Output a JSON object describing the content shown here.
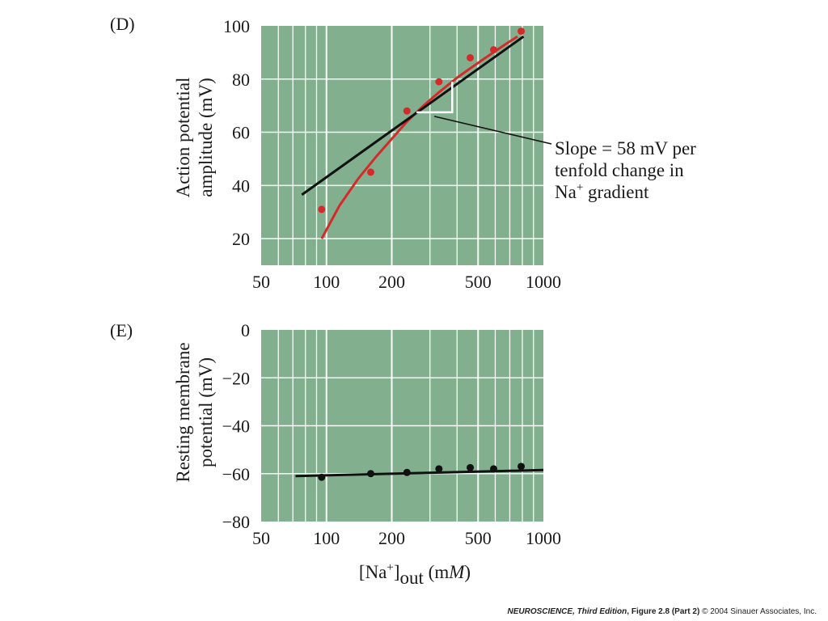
{
  "chart_data": [
    {
      "panel": "(D)",
      "type": "scatter",
      "x_scale": "log",
      "xlim": [
        50,
        1000
      ],
      "ylim": [
        10,
        100
      ],
      "x_ticks": [
        50,
        100,
        200,
        500,
        1000
      ],
      "x_tick_labels": [
        "50",
        "100",
        "200",
        "500",
        "1000"
      ],
      "y_ticks": [
        20,
        40,
        60,
        80,
        100
      ],
      "y_tick_labels": [
        "20",
        "40",
        "60",
        "80",
        "100"
      ],
      "ylabel_lines": [
        "Action potential",
        "amplitude (mV)"
      ],
      "xlabel": "",
      "grid": true,
      "points": [
        {
          "x": 95,
          "y": 31
        },
        {
          "x": 160,
          "y": 45
        },
        {
          "x": 235,
          "y": 68
        },
        {
          "x": 330,
          "y": 79
        },
        {
          "x": 460,
          "y": 88
        },
        {
          "x": 590,
          "y": 91
        },
        {
          "x": 790,
          "y": 98
        }
      ],
      "fit_line": {
        "x": [
          77,
          810
        ],
        "y": [
          36.5,
          96
        ]
      },
      "fit_curve": {
        "x": [
          95,
          115,
          140,
          170,
          200,
          235,
          280,
          330,
          400,
          460,
          530,
          600,
          680,
          760
        ],
        "y": [
          20,
          32.5,
          42.5,
          51,
          57.5,
          64,
          70,
          75,
          80.5,
          84,
          87.5,
          90.5,
          93.5,
          96
        ]
      },
      "slope_triangle": {
        "x_start": 260,
        "x_end": 380,
        "y_low": 67.5,
        "y_high": 79
      },
      "annotation_lines": [
        "Slope = 58 mV per",
        "tenfold change in",
        "Na"
      ],
      "annotation_superscript": "+",
      "annotation_tail": " gradient",
      "colors": {
        "background": "#82b08f",
        "grid": "#ffffff",
        "points": "#d42a2a",
        "curve": "#d42a2a",
        "line": "#111111"
      }
    },
    {
      "panel": "(E)",
      "type": "scatter",
      "x_scale": "log",
      "xlim": [
        50,
        1000
      ],
      "ylim": [
        -80,
        0
      ],
      "x_ticks": [
        50,
        100,
        200,
        500,
        1000
      ],
      "x_tick_labels": [
        "50",
        "100",
        "200",
        "500",
        "1000"
      ],
      "y_ticks": [
        0,
        -20,
        -40,
        -60,
        -80
      ],
      "y_tick_labels": [
        "0",
        "−20",
        "−40",
        "−60",
        "−80"
      ],
      "ylabel_lines": [
        "Resting membrane",
        "potential (mV)"
      ],
      "xlabel_parts": {
        "open": "[Na",
        "sup": "+",
        "close": "]",
        "sub": "out",
        "unit_pre": " (m",
        "unit_italic": "M",
        "unit_post": ")"
      },
      "grid": true,
      "points": [
        {
          "x": 95,
          "y": -61.5
        },
        {
          "x": 160,
          "y": -60
        },
        {
          "x": 235,
          "y": -59.5
        },
        {
          "x": 330,
          "y": -58
        },
        {
          "x": 460,
          "y": -57.5
        },
        {
          "x": 590,
          "y": -58
        },
        {
          "x": 790,
          "y": -57
        }
      ],
      "fit_line": {
        "x": [
          72,
          1000
        ],
        "y": [
          -61,
          -58.5
        ]
      },
      "colors": {
        "background": "#82b08f",
        "grid": "#ffffff",
        "points": "#111111",
        "line": "#111111"
      }
    }
  ],
  "footer": {
    "book": "NEUROSCIENCE",
    "edition": ", Third Edition",
    "figure": ", Figure 2.8 (Part 2)",
    "copyright": "  © 2004 Sinauer Associates, Inc."
  }
}
